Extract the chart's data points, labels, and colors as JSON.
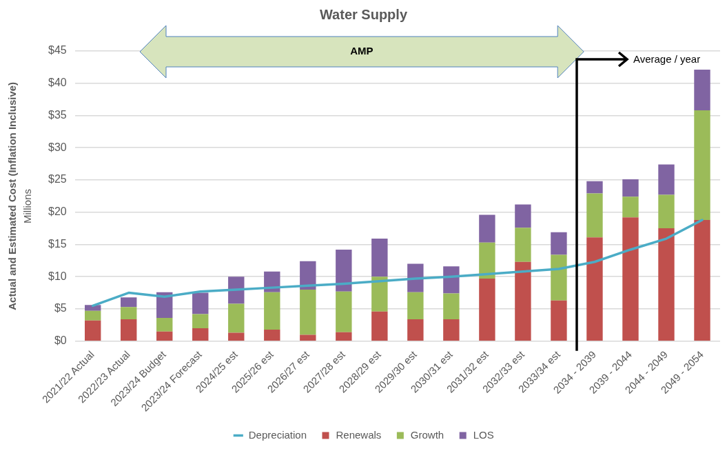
{
  "chart_data": {
    "type": "bar",
    "title": "Water Supply",
    "ylabel": "Actual and Estimated Cost (Inflation Inclusive)",
    "annotations": [
      "AMP",
      "Average / year",
      "Millions"
    ],
    "categories": [
      "2021/22 Actual",
      "2022/23 Actual",
      "2023/24 Budget",
      "2023/24 Forecast",
      "2024/25 est",
      "2025/26 est",
      "2026/27 est",
      "2027/28 est",
      "2028/29 est",
      "2029/30 est",
      "2030/31 est",
      "2031/32 est",
      "2032/33 est",
      "2033/34 est",
      "2034 - 2039",
      "2039 - 2044",
      "2044 - 2049",
      "2049 - 2054"
    ],
    "stacked": true,
    "series": [
      {
        "name": "Renewals",
        "color": "#c0504d",
        "values": [
          3.2,
          3.4,
          1.5,
          2.0,
          1.3,
          1.8,
          1.0,
          1.4,
          4.6,
          3.4,
          3.4,
          9.7,
          12.3,
          6.3,
          16.1,
          19.2,
          17.5,
          18.8
        ]
      },
      {
        "name": "Growth",
        "color": "#9bbb59",
        "values": [
          1.5,
          1.9,
          2.1,
          2.2,
          4.5,
          5.8,
          7.0,
          6.3,
          5.4,
          4.2,
          4.0,
          5.6,
          5.3,
          7.1,
          6.8,
          3.2,
          5.2,
          17.0
        ]
      },
      {
        "name": "LOS",
        "color": "#8064a2",
        "values": [
          0.9,
          1.5,
          4.0,
          3.3,
          4.2,
          3.2,
          4.4,
          6.5,
          5.9,
          4.4,
          4.2,
          4.3,
          3.6,
          3.5,
          1.9,
          2.7,
          4.7,
          6.3
        ]
      },
      {
        "name": "Depreciation",
        "type": "line",
        "color": "#4bacc6",
        "values": [
          5.5,
          7.5,
          6.9,
          7.7,
          8.0,
          8.3,
          8.6,
          8.9,
          9.3,
          9.7,
          10.0,
          10.4,
          10.8,
          11.2,
          12.3,
          14.2,
          15.9,
          18.8
        ]
      }
    ],
    "ylim": [
      0,
      45
    ],
    "yticks": [
      {
        "value": 0,
        "label": "$0"
      },
      {
        "value": 5,
        "label": "$5"
      },
      {
        "value": 10,
        "label": "$10"
      },
      {
        "value": 15,
        "label": "$15"
      },
      {
        "value": 20,
        "label": "$20"
      },
      {
        "value": 25,
        "label": "$25"
      },
      {
        "value": 30,
        "label": "$30"
      },
      {
        "value": 35,
        "label": "$35"
      },
      {
        "value": 40,
        "label": "$40"
      },
      {
        "value": 45,
        "label": "$45"
      }
    ],
    "grid": "y",
    "legend": "bottom",
    "marker": "none",
    "line_style": "solid"
  }
}
